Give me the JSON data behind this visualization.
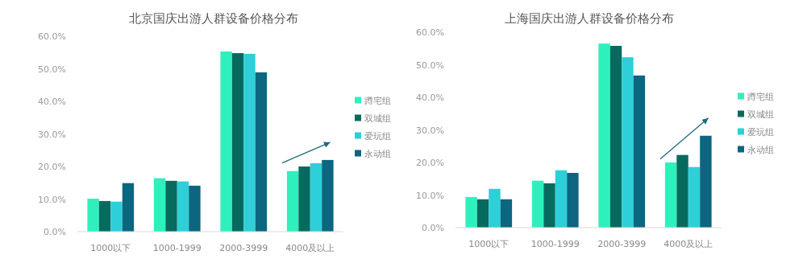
{
  "chart_data": [
    {
      "type": "bar",
      "title": "北京国庆出游人群设备价格分布",
      "categories": [
        "1000以下",
        "1000-1999",
        "2000-3999",
        "4000及以上"
      ],
      "series": [
        {
          "name": "蹲宅组",
          "color": "#2ef0bd",
          "values": [
            10.1,
            16.4,
            55.3,
            18.6
          ]
        },
        {
          "name": "双城组",
          "color": "#066b5e",
          "values": [
            9.4,
            15.6,
            54.8,
            20.0
          ]
        },
        {
          "name": "爱玩组",
          "color": "#2ecfd8",
          "values": [
            9.2,
            15.4,
            54.6,
            21.0
          ]
        },
        {
          "name": "永动组",
          "color": "#0d6680",
          "values": [
            14.9,
            14.1,
            48.9,
            22.0
          ]
        }
      ],
      "ylim": [
        0,
        60
      ],
      "yticks": [
        {
          "value": 0,
          "label": "0.0%"
        },
        {
          "value": 10,
          "label": "10.0%"
        },
        {
          "value": 20,
          "label": "20.0%"
        },
        {
          "value": 30,
          "label": "30.0%"
        },
        {
          "value": 40,
          "label": "40.0%"
        },
        {
          "value": 50,
          "label": "50.0%"
        },
        {
          "value": 60,
          "label": "60.0%"
        }
      ],
      "legend": "right"
    },
    {
      "type": "bar",
      "title": "上海国庆出游人群设备价格分布",
      "categories": [
        "1000以下",
        "1000-1999",
        "2000-3999",
        "4000及以上"
      ],
      "series": [
        {
          "name": "蹲宅组",
          "color": "#2ef0bd",
          "values": [
            9.4,
            14.4,
            56.5,
            20.0
          ]
        },
        {
          "name": "双城组",
          "color": "#066b5e",
          "values": [
            8.7,
            13.6,
            55.8,
            22.3
          ]
        },
        {
          "name": "爱玩组",
          "color": "#2ecfd8",
          "values": [
            11.9,
            17.6,
            52.3,
            18.6
          ]
        },
        {
          "name": "永动组",
          "color": "#0d6680",
          "values": [
            8.7,
            16.8,
            46.7,
            28.2
          ]
        }
      ],
      "ylim": [
        0,
        60
      ],
      "yticks": [
        {
          "value": 0,
          "label": "0.0%"
        },
        {
          "value": 10,
          "label": "10.0%"
        },
        {
          "value": 20,
          "label": "20.0%"
        },
        {
          "value": 30,
          "label": "30.0%"
        },
        {
          "value": 40,
          "label": "40.0%"
        },
        {
          "value": 50,
          "label": "50.0%"
        },
        {
          "value": 60,
          "label": "60.0%"
        }
      ],
      "legend": "right"
    }
  ]
}
